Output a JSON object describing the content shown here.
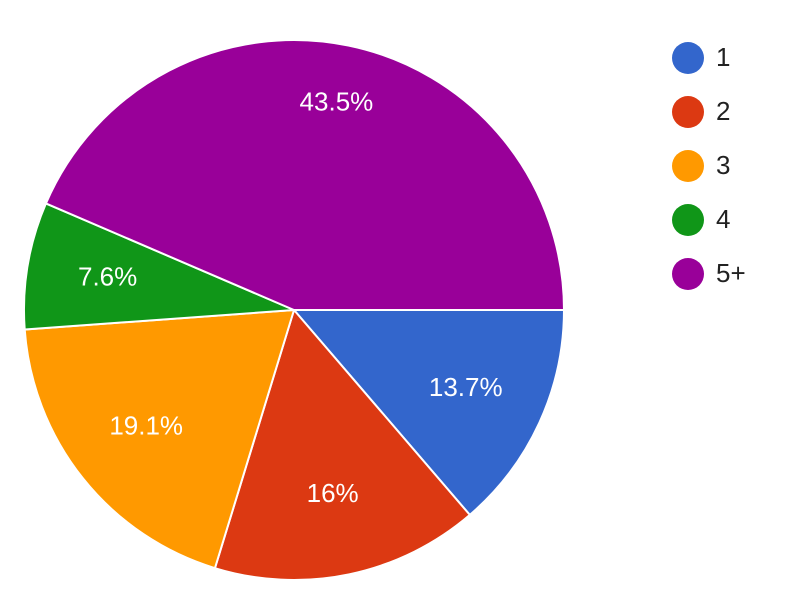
{
  "chart_data": {
    "type": "pie",
    "categories": [
      "1",
      "2",
      "3",
      "4",
      "5+"
    ],
    "values": [
      13.7,
      16,
      19.1,
      7.6,
      43.5
    ],
    "value_labels": [
      "13.7%",
      "16%",
      "19.1%",
      "7.6%",
      "43.5%"
    ],
    "colors": [
      "#3366cc",
      "#dc3912",
      "#ff9900",
      "#109618",
      "#990099"
    ],
    "legend": "right"
  }
}
